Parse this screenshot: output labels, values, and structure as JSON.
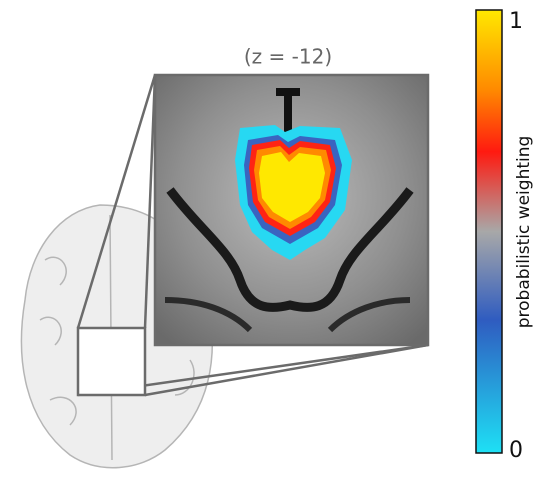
{
  "inset": {
    "label": "(z = -12)"
  },
  "colorbar": {
    "label": "probabilistic weighting",
    "max_label": "1",
    "min_label": "0"
  }
}
